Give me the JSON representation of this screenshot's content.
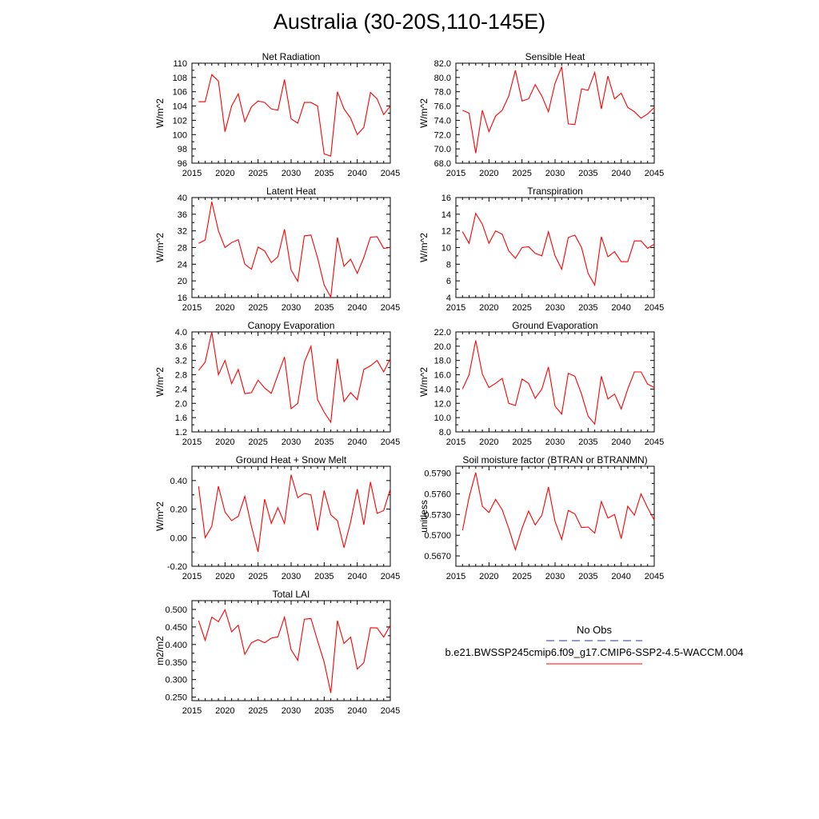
{
  "title": "Australia (30-20S,110-145E)",
  "legend": {
    "obs_label": "No Obs",
    "model_label": "b.e21.BWSSP245cmip6.f09_g17.CMIP6-SSP2-4.5-WACCM.004",
    "obs_color": "#3333aa",
    "model_color": "#ff0000"
  },
  "chart_data": [
    {
      "type": "line",
      "title": "Net Radiation",
      "ylabel": "W/m^2",
      "xlim": [
        2015,
        2045
      ],
      "ylim": [
        96,
        110
      ],
      "xticks": [
        2015,
        2020,
        2025,
        2030,
        2035,
        2040,
        2045
      ],
      "yticks": [
        "96",
        "98",
        "100",
        "102",
        "104",
        "106",
        "108",
        "110"
      ],
      "x": [
        2016,
        2017,
        2018,
        2019,
        2020,
        2021,
        2022,
        2023,
        2024,
        2025,
        2026,
        2027,
        2028,
        2029,
        2030,
        2031,
        2032,
        2033,
        2034,
        2035,
        2036,
        2037,
        2038,
        2039,
        2040,
        2041,
        2042,
        2043,
        2044,
        2045
      ],
      "series": [
        {
          "color": "#ff0000",
          "values": [
            104.6,
            104.6,
            108.4,
            107.5,
            100.4,
            104.0,
            105.7,
            101.8,
            103.9,
            104.7,
            104.5,
            103.6,
            103.4,
            107.7,
            102.2,
            101.6,
            104.5,
            104.5,
            104.0,
            97.3,
            97.0,
            106.0,
            103.6,
            102.3,
            100.0,
            101.0,
            105.9,
            105.0,
            102.8,
            104.0
          ]
        }
      ]
    },
    {
      "type": "line",
      "title": "Sensible Heat",
      "ylabel": "W/m^2",
      "xlim": [
        2015,
        2045
      ],
      "ylim": [
        68,
        82
      ],
      "xticks": [
        2015,
        2020,
        2025,
        2030,
        2035,
        2040,
        2045
      ],
      "yticks": [
        "68.0",
        "70.0",
        "72.0",
        "74.0",
        "76.0",
        "78.0",
        "80.0",
        "82.0"
      ],
      "x": [
        2016,
        2017,
        2018,
        2019,
        2020,
        2021,
        2022,
        2023,
        2024,
        2025,
        2026,
        2027,
        2028,
        2029,
        2030,
        2031,
        2032,
        2033,
        2034,
        2035,
        2036,
        2037,
        2038,
        2039,
        2040,
        2041,
        2042,
        2043,
        2044,
        2045
      ],
      "series": [
        {
          "color": "#ff0000",
          "values": [
            75.4,
            75.0,
            69.4,
            75.4,
            72.4,
            74.6,
            75.4,
            77.4,
            81.0,
            76.7,
            77.0,
            79.0,
            77.4,
            75.2,
            79.2,
            81.5,
            73.5,
            73.4,
            78.4,
            78.2,
            80.7,
            75.6,
            80.2,
            77.0,
            77.8,
            75.8,
            75.2,
            74.3,
            74.9,
            75.8
          ]
        }
      ]
    },
    {
      "type": "line",
      "title": "Latent Heat",
      "ylabel": "W/m^2",
      "xlim": [
        2015,
        2045
      ],
      "ylim": [
        16,
        40
      ],
      "xticks": [
        2015,
        2020,
        2025,
        2030,
        2035,
        2040,
        2045
      ],
      "yticks": [
        "16",
        "20",
        "24",
        "28",
        "32",
        "36",
        "40"
      ],
      "x": [
        2016,
        2017,
        2018,
        2019,
        2020,
        2021,
        2022,
        2023,
        2024,
        2025,
        2026,
        2027,
        2028,
        2029,
        2030,
        2031,
        2032,
        2033,
        2034,
        2035,
        2036,
        2037,
        2038,
        2039,
        2040,
        2041,
        2042,
        2043,
        2044,
        2045
      ],
      "series": [
        {
          "color": "#ff0000",
          "values": [
            29.0,
            29.8,
            39.0,
            32.0,
            28.0,
            29.2,
            29.9,
            24.0,
            22.8,
            28.1,
            27.2,
            24.4,
            25.8,
            32.4,
            22.6,
            19.9,
            30.8,
            31.0,
            25.5,
            19.0,
            16.1,
            30.4,
            23.5,
            25.2,
            21.8,
            25.6,
            30.5,
            30.6,
            27.8,
            28.0
          ]
        }
      ]
    },
    {
      "type": "line",
      "title": "Transpiration",
      "ylabel": "W/m^2",
      "xlim": [
        2015,
        2045
      ],
      "ylim": [
        4,
        16
      ],
      "xticks": [
        2015,
        2020,
        2025,
        2030,
        2035,
        2040,
        2045
      ],
      "yticks": [
        "4",
        "6",
        "8",
        "10",
        "12",
        "14",
        "16"
      ],
      "x": [
        2016,
        2017,
        2018,
        2019,
        2020,
        2021,
        2022,
        2023,
        2024,
        2025,
        2026,
        2027,
        2028,
        2029,
        2030,
        2031,
        2032,
        2033,
        2034,
        2035,
        2036,
        2037,
        2038,
        2039,
        2040,
        2041,
        2042,
        2043,
        2044,
        2045
      ],
      "series": [
        {
          "color": "#ff0000",
          "values": [
            11.9,
            10.5,
            14.1,
            12.8,
            10.5,
            12.0,
            11.6,
            9.6,
            8.7,
            10.0,
            10.1,
            9.3,
            9.0,
            11.9,
            9.0,
            7.4,
            11.2,
            11.5,
            10.0,
            6.9,
            5.5,
            11.3,
            8.9,
            9.5,
            8.3,
            8.3,
            10.8,
            10.8,
            9.9,
            10.4
          ]
        }
      ]
    },
    {
      "type": "line",
      "title": "Canopy Evaporation",
      "ylabel": "W/m^2",
      "xlim": [
        2015,
        2045
      ],
      "ylim": [
        1.2,
        4.0
      ],
      "xticks": [
        2015,
        2020,
        2025,
        2030,
        2035,
        2040,
        2045
      ],
      "yticks": [
        "1.2",
        "1.6",
        "2.0",
        "2.4",
        "2.8",
        "3.2",
        "3.6",
        "4.0"
      ],
      "x": [
        2016,
        2017,
        2018,
        2019,
        2020,
        2021,
        2022,
        2023,
        2024,
        2025,
        2026,
        2027,
        2028,
        2029,
        2030,
        2031,
        2032,
        2033,
        2034,
        2035,
        2036,
        2037,
        2038,
        2039,
        2040,
        2041,
        2042,
        2043,
        2044,
        2045
      ],
      "series": [
        {
          "color": "#ff0000",
          "values": [
            2.92,
            3.15,
            4.0,
            2.8,
            3.2,
            2.55,
            2.95,
            2.27,
            2.3,
            2.65,
            2.43,
            2.28,
            2.8,
            3.3,
            1.85,
            2.0,
            3.15,
            3.6,
            2.1,
            1.75,
            1.47,
            3.25,
            2.05,
            2.3,
            2.1,
            2.95,
            3.05,
            3.2,
            2.88,
            3.25
          ]
        }
      ]
    },
    {
      "type": "line",
      "title": "Ground Evaporation",
      "ylabel": "W/m^2",
      "xlim": [
        2015,
        2045
      ],
      "ylim": [
        8,
        22
      ],
      "xticks": [
        2015,
        2020,
        2025,
        2030,
        2035,
        2040,
        2045
      ],
      "yticks": [
        "8.0",
        "10.0",
        "12.0",
        "14.0",
        "16.0",
        "18.0",
        "20.0",
        "22.0"
      ],
      "x": [
        2016,
        2017,
        2018,
        2019,
        2020,
        2021,
        2022,
        2023,
        2024,
        2025,
        2026,
        2027,
        2028,
        2029,
        2030,
        2031,
        2032,
        2033,
        2034,
        2035,
        2036,
        2037,
        2038,
        2039,
        2040,
        2041,
        2042,
        2043,
        2044,
        2045
      ],
      "series": [
        {
          "color": "#ff0000",
          "values": [
            14.0,
            16.0,
            20.8,
            16.1,
            14.2,
            14.8,
            15.5,
            12.0,
            11.7,
            15.4,
            14.8,
            12.7,
            14.0,
            17.1,
            11.6,
            10.5,
            16.2,
            15.8,
            13.3,
            10.2,
            9.1,
            15.8,
            12.6,
            13.3,
            11.2,
            14.0,
            16.4,
            16.4,
            14.7,
            14.2
          ]
        }
      ]
    },
    {
      "type": "line",
      "title": "Ground Heat + Snow Melt",
      "ylabel": "W/m^2",
      "xlim": [
        2015,
        2045
      ],
      "ylim": [
        -0.2,
        0.5
      ],
      "xticks": [
        2015,
        2020,
        2025,
        2030,
        2035,
        2040,
        2045
      ],
      "yticks": [
        "-0.20",
        "0.00",
        "0.20",
        "0.40"
      ],
      "x": [
        2016,
        2017,
        2018,
        2019,
        2020,
        2021,
        2022,
        2023,
        2024,
        2025,
        2026,
        2027,
        2028,
        2029,
        2030,
        2031,
        2032,
        2033,
        2034,
        2035,
        2036,
        2037,
        2038,
        2039,
        2040,
        2041,
        2042,
        2043,
        2044,
        2045
      ],
      "series": [
        {
          "color": "#ff0000",
          "values": [
            0.36,
            0.0,
            0.08,
            0.36,
            0.18,
            0.12,
            0.15,
            0.29,
            0.08,
            -0.1,
            0.27,
            0.1,
            0.21,
            0.1,
            0.44,
            0.28,
            0.31,
            0.3,
            0.05,
            0.33,
            0.16,
            0.12,
            -0.07,
            0.11,
            0.34,
            0.09,
            0.39,
            0.17,
            0.19,
            0.34
          ]
        }
      ]
    },
    {
      "type": "line",
      "title": "Soil moisture factor (BTRAN or BTRANMN)",
      "ylabel": "unitless",
      "xlim": [
        2015,
        2045
      ],
      "ylim": [
        0.5655,
        0.58
      ],
      "xticks": [
        2015,
        2020,
        2025,
        2030,
        2035,
        2040,
        2045
      ],
      "yticks": [
        "0.5670",
        "0.5700",
        "0.5730",
        "0.5760",
        "0.5790"
      ],
      "x": [
        2016,
        2017,
        2018,
        2019,
        2020,
        2021,
        2022,
        2023,
        2024,
        2025,
        2026,
        2027,
        2028,
        2029,
        2030,
        2031,
        2032,
        2033,
        2034,
        2035,
        2036,
        2037,
        2038,
        2039,
        2040,
        2041,
        2042,
        2043,
        2044,
        2045
      ],
      "series": [
        {
          "color": "#ff0000",
          "values": [
            0.5707,
            0.5755,
            0.5791,
            0.5742,
            0.5733,
            0.5752,
            0.5737,
            0.571,
            0.5679,
            0.571,
            0.5735,
            0.5715,
            0.5729,
            0.577,
            0.572,
            0.5694,
            0.5736,
            0.5731,
            0.5711,
            0.5712,
            0.5703,
            0.5749,
            0.5725,
            0.573,
            0.5695,
            0.5742,
            0.5729,
            0.576,
            0.574,
            0.5722
          ]
        }
      ]
    },
    {
      "type": "line",
      "title": "Total LAI",
      "ylabel": "m2/m2",
      "xlim": [
        2015,
        2045
      ],
      "ylim": [
        0.24,
        0.525
      ],
      "xticks": [
        2015,
        2020,
        2025,
        2030,
        2035,
        2040,
        2045
      ],
      "yticks": [
        "0.250",
        "0.300",
        "0.350",
        "0.400",
        "0.450",
        "0.500"
      ],
      "x": [
        2016,
        2017,
        2018,
        2019,
        2020,
        2021,
        2022,
        2023,
        2024,
        2025,
        2026,
        2027,
        2028,
        2029,
        2030,
        2031,
        2032,
        2033,
        2034,
        2035,
        2036,
        2037,
        2038,
        2039,
        2040,
        2041,
        2042,
        2043,
        2044,
        2045
      ],
      "series": [
        {
          "color": "#ff0000",
          "values": [
            0.468,
            0.412,
            0.478,
            0.465,
            0.499,
            0.436,
            0.455,
            0.372,
            0.405,
            0.414,
            0.405,
            0.418,
            0.422,
            0.478,
            0.385,
            0.355,
            0.472,
            0.474,
            0.41,
            0.35,
            0.262,
            0.468,
            0.403,
            0.421,
            0.33,
            0.348,
            0.448,
            0.447,
            0.421,
            0.455
          ]
        }
      ]
    }
  ]
}
